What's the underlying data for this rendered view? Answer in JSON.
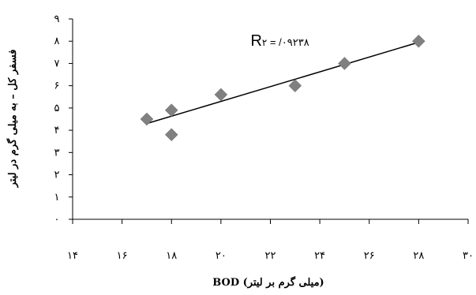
{
  "chart_data": {
    "type": "scatter",
    "title": "",
    "xlabel": "(میلی گرم بر لیتر) BOD",
    "ylabel": "فسفر کل – به میلی گرم در لیتر",
    "xlim": [
      14,
      30
    ],
    "ylim": [
      0,
      9
    ],
    "x_ticks": [
      14,
      16,
      18,
      20,
      22,
      24,
      26,
      28,
      30
    ],
    "y_ticks": [
      0,
      1,
      2,
      3,
      4,
      5,
      6,
      7,
      8,
      9
    ],
    "x_tick_labels": [
      "۱۴",
      "۱۶",
      "۱۸",
      "۲۰",
      "۲۲",
      "۲۴",
      "۲۶",
      "۲۸",
      "۳۰"
    ],
    "y_tick_labels": [
      "۰",
      "۱",
      "۲",
      "۳",
      "۴",
      "۵",
      "۶",
      "۷",
      "۸",
      "۹"
    ],
    "series": [
      {
        "points": [
          {
            "x": 17,
            "y": 4.5
          },
          {
            "x": 18,
            "y": 4.9
          },
          {
            "x": 18,
            "y": 3.8
          },
          {
            "x": 20,
            "y": 5.6
          },
          {
            "x": 23,
            "y": 6.0
          },
          {
            "x": 25,
            "y": 7.0
          },
          {
            "x": 28,
            "y": 8.0
          }
        ],
        "marker": "diamond",
        "color": "#808080"
      }
    ],
    "trendline": {
      "from": {
        "x": 17,
        "y": 4.3
      },
      "to": {
        "x": 28,
        "y": 7.95
      },
      "color": "#000000"
    },
    "annotation": {
      "prefix": "R",
      "superscript": "۲",
      "suffix": " = /۰۹۲۳۸",
      "x": 21.2,
      "y": 7.8
    },
    "grid": false,
    "legend": "none"
  }
}
